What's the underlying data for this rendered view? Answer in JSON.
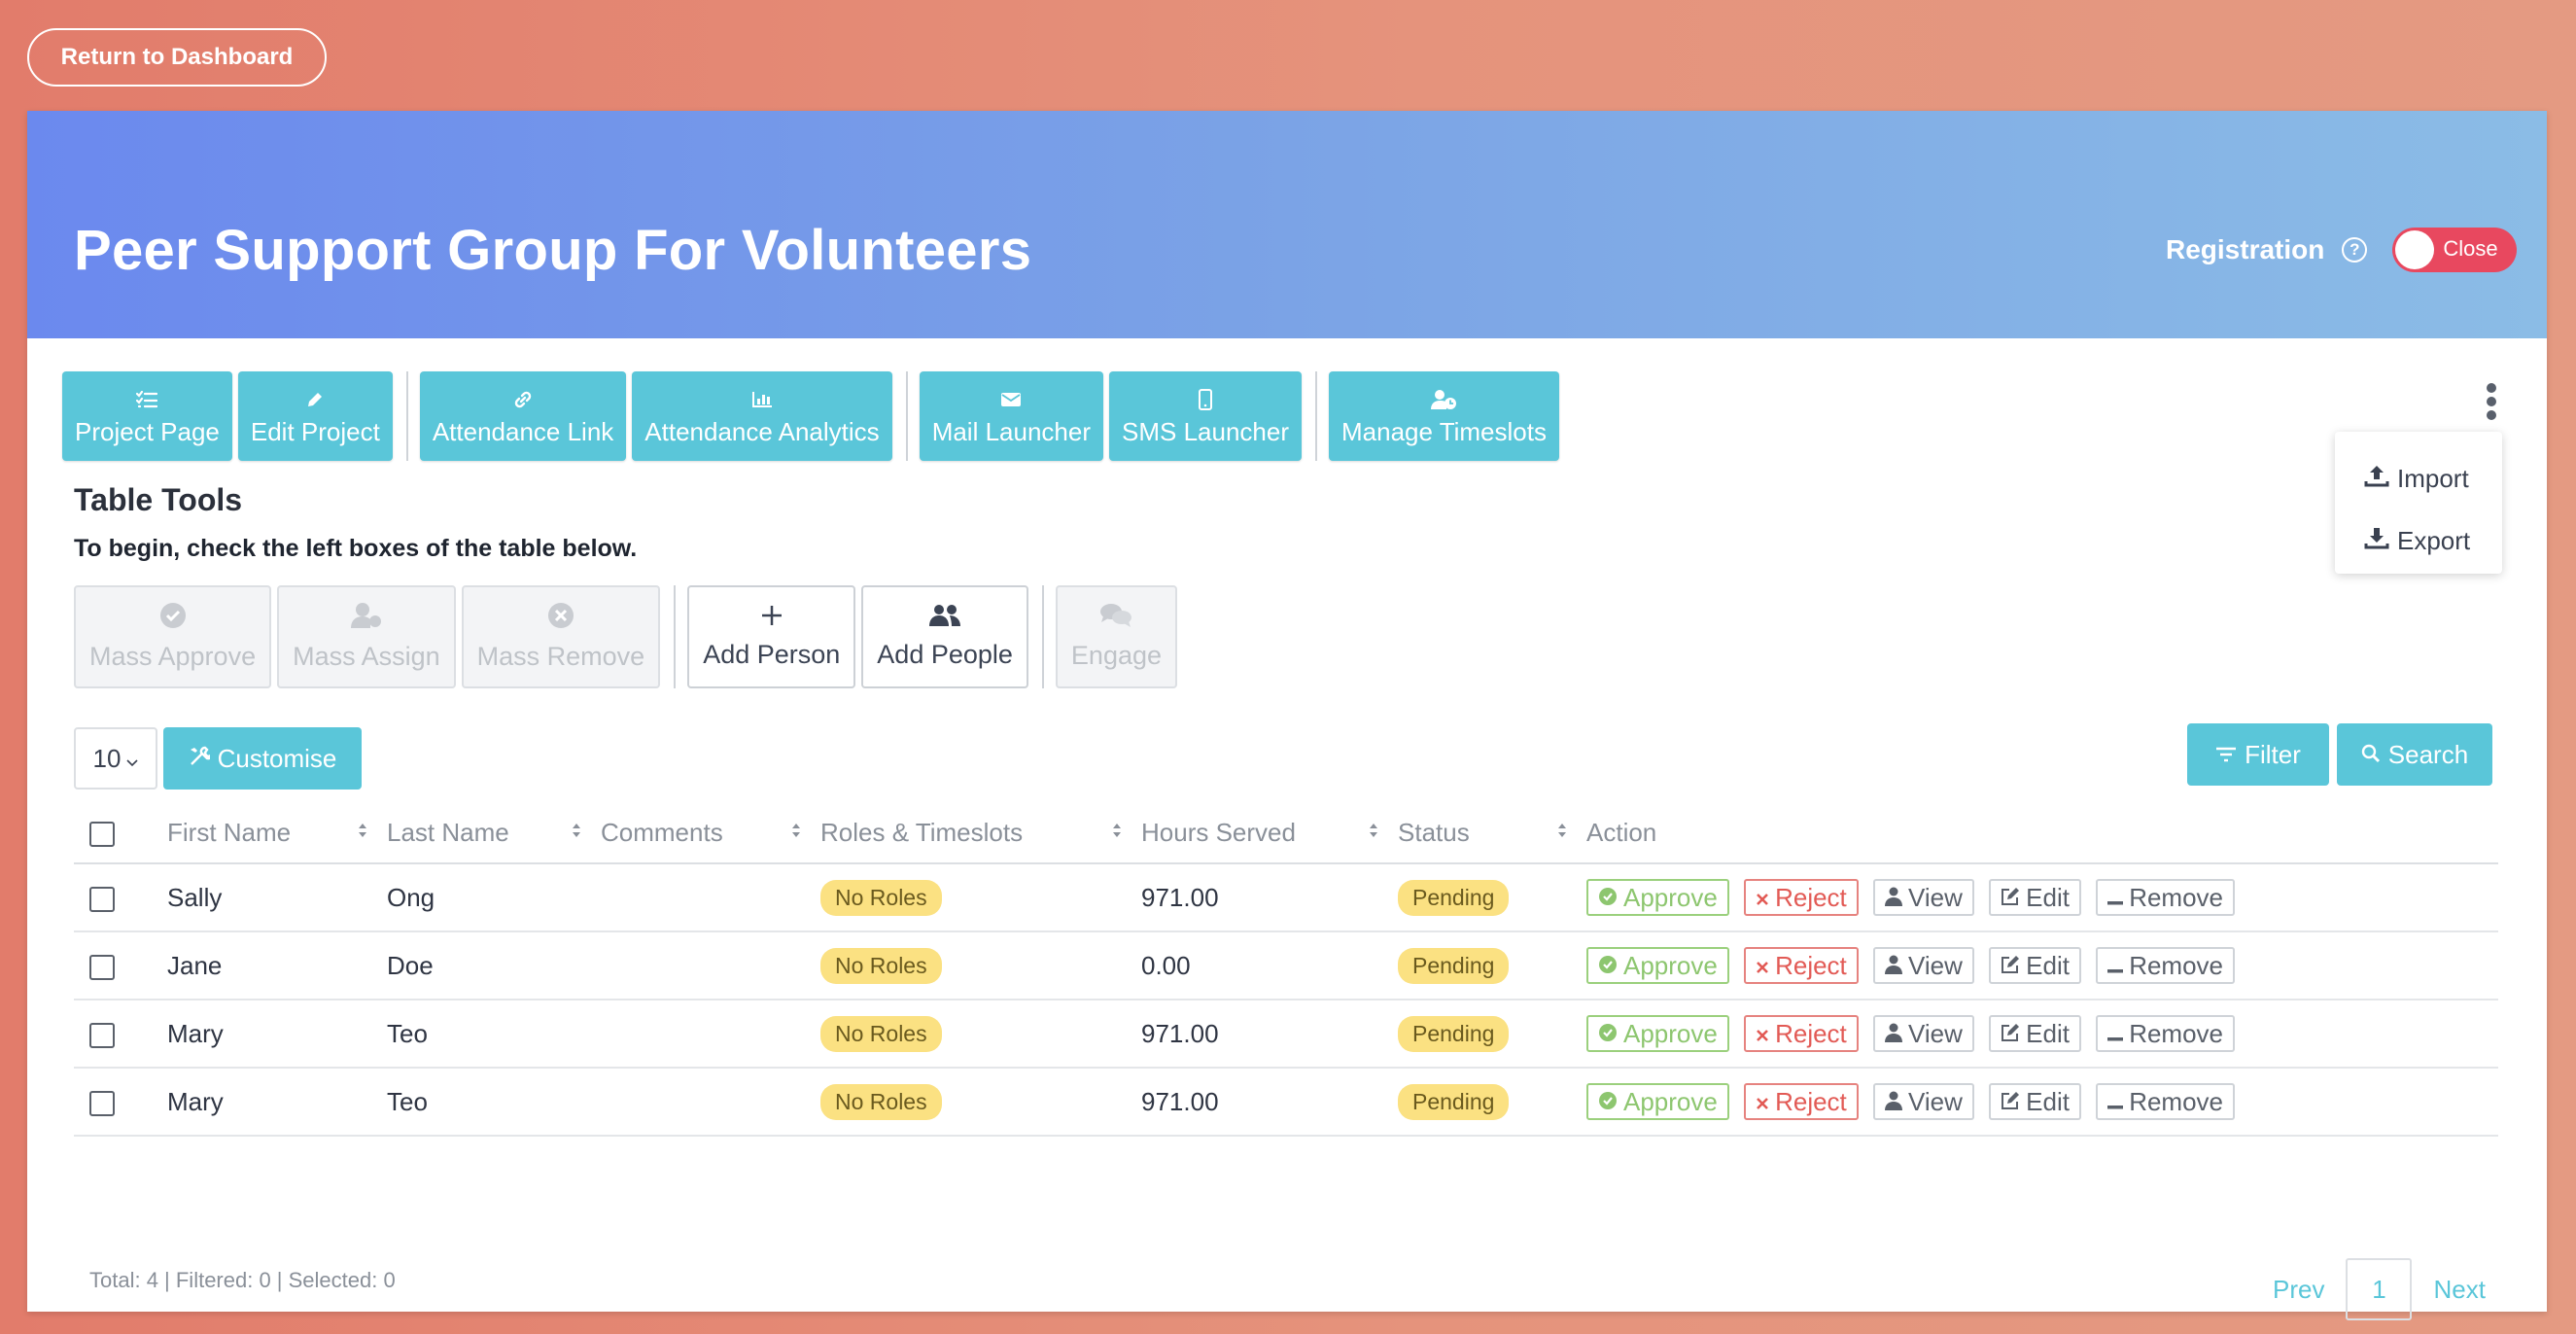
{
  "return_button": "Return to Dashboard",
  "project_title": "Peer Support Group For Volunteers",
  "registration": {
    "label": "Registration",
    "help": "?",
    "toggle_label": "Close"
  },
  "top_nav": [
    {
      "label": "Project Page",
      "icon": "list-check-icon"
    },
    {
      "label": "Edit Project",
      "icon": "pencil-icon"
    },
    {
      "label": "Attendance Link",
      "icon": "link-icon"
    },
    {
      "label": "Attendance Analytics",
      "icon": "bar-chart-icon"
    },
    {
      "label": "Mail Launcher",
      "icon": "envelope-icon"
    },
    {
      "label": "SMS Launcher",
      "icon": "mobile-icon"
    },
    {
      "label": "Manage Timeslots",
      "icon": "user-clock-icon"
    }
  ],
  "more_menu": {
    "items": [
      {
        "label": "Import",
        "icon": "upload-icon"
      },
      {
        "label": "Export",
        "icon": "download-icon"
      }
    ]
  },
  "table_tools": {
    "title": "Table Tools",
    "subtitle": "To begin, check the left boxes of the table below.",
    "buttons": [
      {
        "label": "Mass Approve",
        "icon": "check-circle-icon",
        "enabled": false
      },
      {
        "label": "Mass Assign",
        "icon": "user-assign-icon",
        "enabled": false
      },
      {
        "label": "Mass Remove",
        "icon": "x-circle-icon",
        "enabled": false
      },
      {
        "label": "Add Person",
        "icon": "plus-icon",
        "enabled": true
      },
      {
        "label": "Add People",
        "icon": "users-icon",
        "enabled": true
      },
      {
        "label": "Engage",
        "icon": "chat-icon",
        "enabled": false
      }
    ]
  },
  "controls": {
    "page_length": "10",
    "customise": "Customise",
    "filter": "Filter",
    "search": "Search"
  },
  "table": {
    "columns": [
      "First Name",
      "Last Name",
      "Comments",
      "Roles & Timeslots",
      "Hours Served",
      "Status",
      "Action"
    ],
    "rows": [
      {
        "first": "Sally",
        "last": "Ong",
        "comments": "",
        "roles": "No Roles",
        "hours": "971.00",
        "status": "Pending"
      },
      {
        "first": "Jane",
        "last": "Doe",
        "comments": "",
        "roles": "No Roles",
        "hours": "0.00",
        "status": "Pending"
      },
      {
        "first": "Mary",
        "last": "Teo",
        "comments": "",
        "roles": "No Roles",
        "hours": "971.00",
        "status": "Pending"
      },
      {
        "first": "Mary",
        "last": "Teo",
        "comments": "",
        "roles": "No Roles",
        "hours": "971.00",
        "status": "Pending"
      }
    ],
    "actions": {
      "approve": "Approve",
      "reject": "Reject",
      "view": "View",
      "edit": "Edit",
      "remove": "Remove"
    }
  },
  "footer": {
    "summary": "Total: 4 | Filtered: 0 | Selected: 0",
    "prev": "Prev",
    "page": "1",
    "next": "Next"
  },
  "colors": {
    "accent": "#5ac6d9",
    "toggle": "#e8485f",
    "badge": "#fbe182",
    "approve": "#8dc66f",
    "reject": "#e25a55"
  }
}
